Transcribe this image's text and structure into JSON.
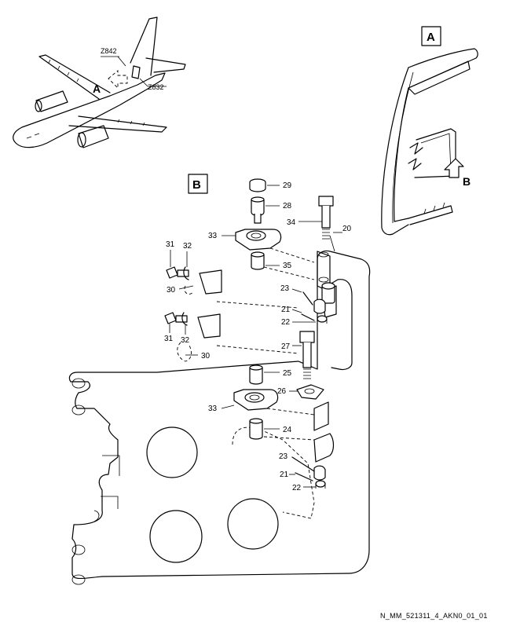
{
  "figure_id": "N_MM_521311_4_AKN0_01_01",
  "views": {
    "a": "A",
    "b": "B"
  },
  "aircraft": {
    "zone_upper": "Z842",
    "zone_lower": "Z832",
    "view_arrow": "A"
  },
  "door": {
    "view_arrow": "B"
  },
  "callouts": {
    "c29": "29",
    "c28": "28",
    "c34": "34",
    "c33a": "33",
    "c20": "20",
    "c35": "35",
    "c31a": "31",
    "c32a": "32",
    "c30a": "30",
    "c23a": "23",
    "c21a": "21",
    "c22a": "22",
    "c31b": "31",
    "c32b": "32",
    "c30b": "30",
    "c27": "27",
    "c25": "25",
    "c26": "26",
    "c33b": "33",
    "c24": "24",
    "c23b": "23",
    "c21b": "21",
    "c22b": "22"
  }
}
